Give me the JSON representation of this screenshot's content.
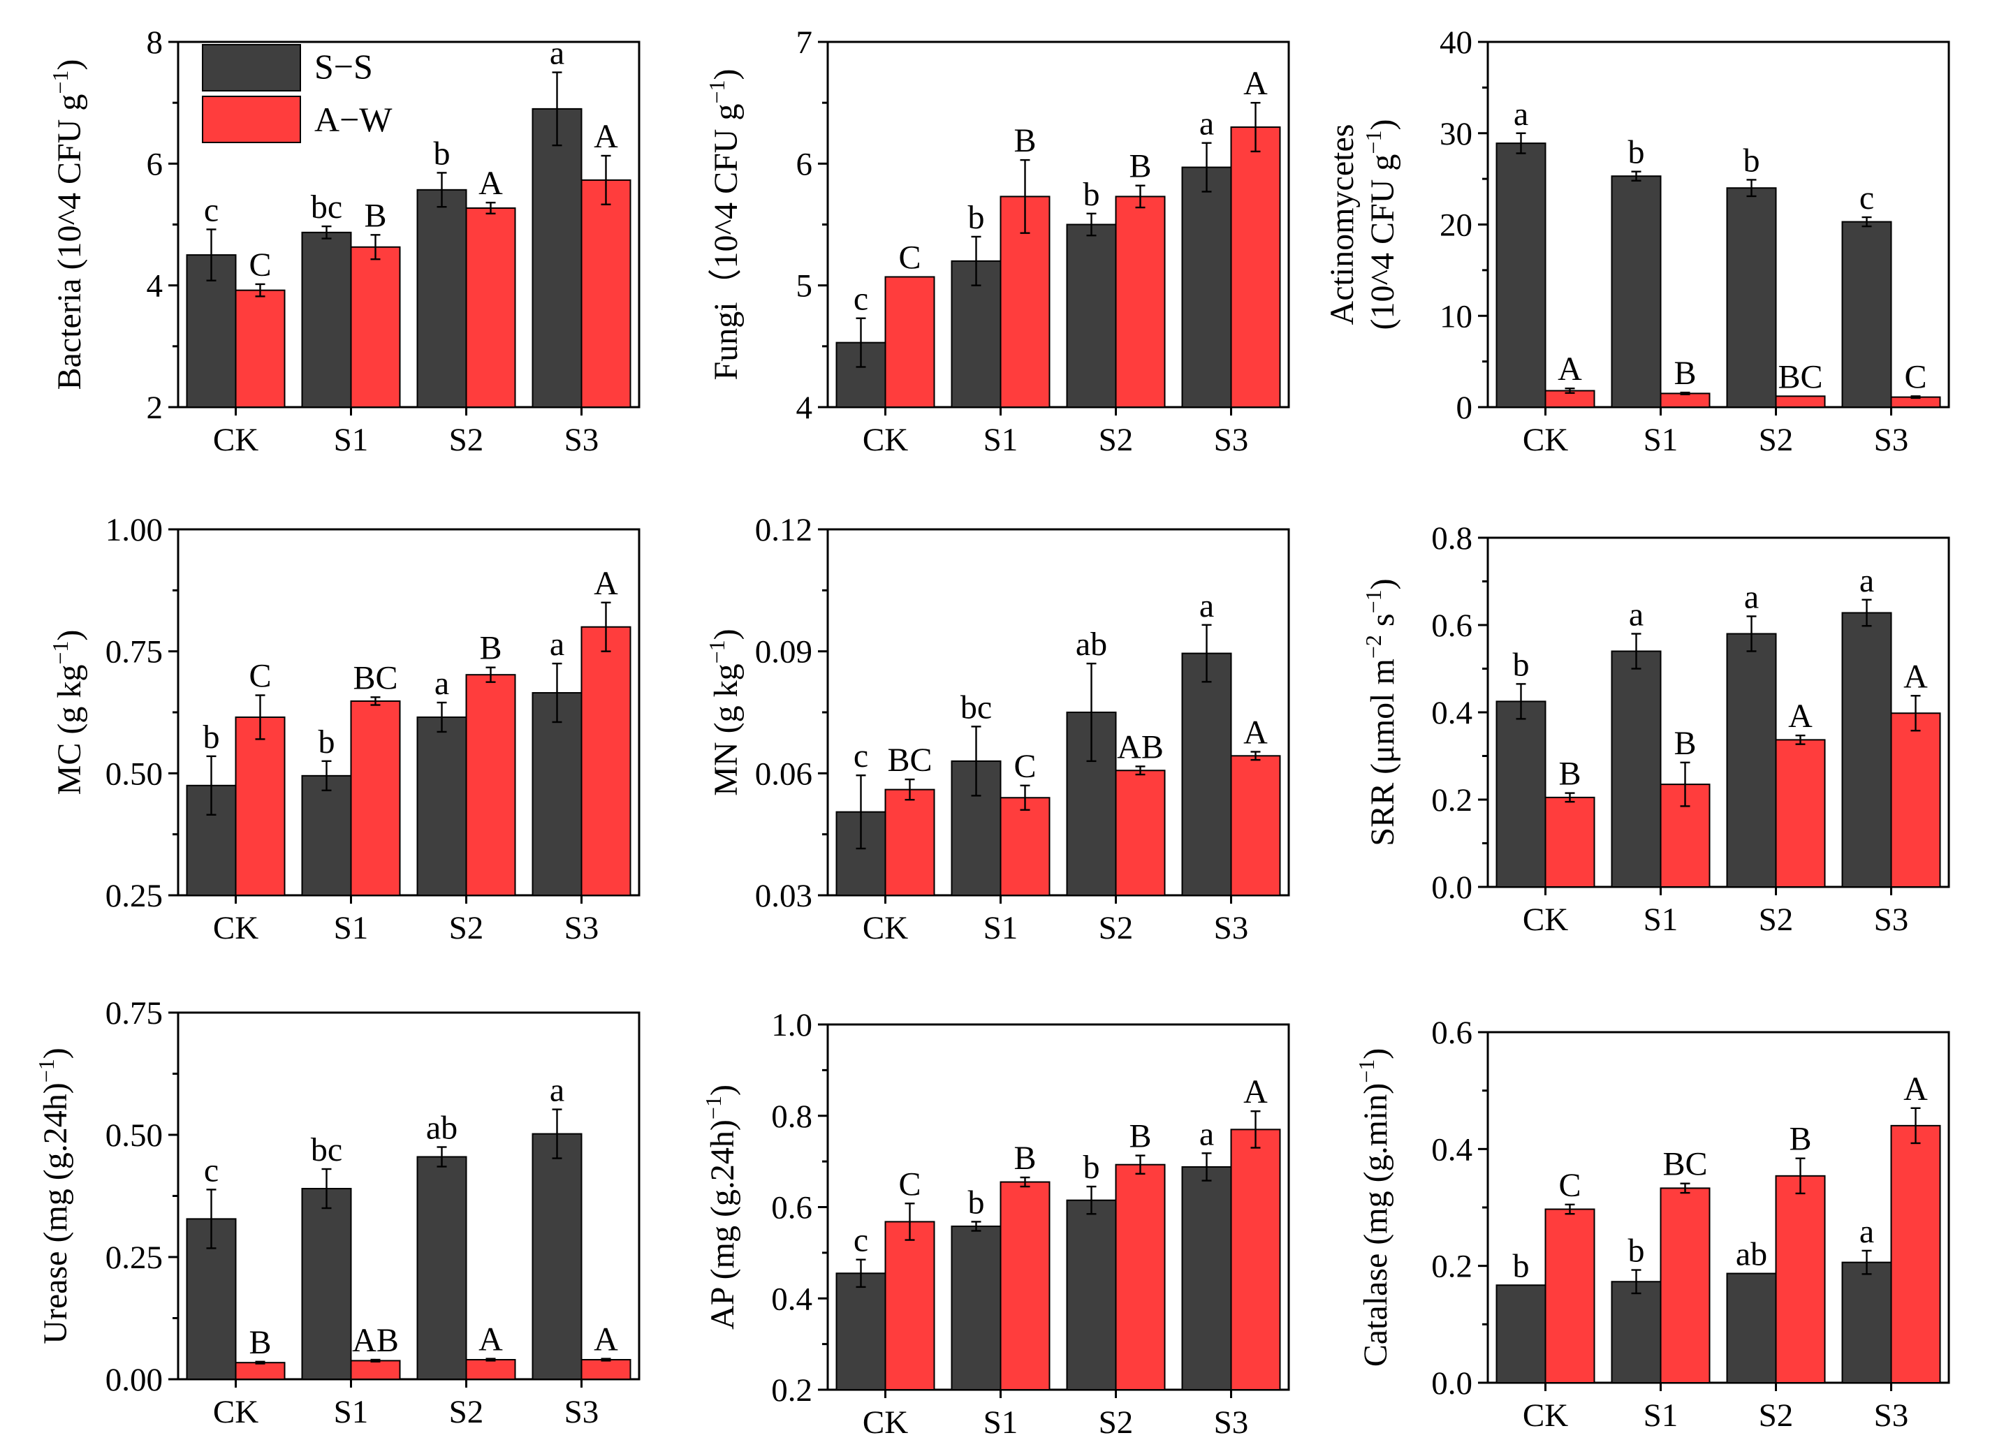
{
  "legend": {
    "entries": [
      {
        "name": "S−S",
        "color": "#3f3f3f"
      },
      {
        "name": "A−W",
        "color": "#ff3d3d"
      }
    ]
  },
  "chart_data": [
    {
      "type": "bar",
      "id": "bacteria",
      "ylabel": "Bacteria (10^4 CFU g",
      "ylabel_sup": "−1",
      "ylabel_tail": ")",
      "categories": [
        "CK",
        "S1",
        "S2",
        "S3"
      ],
      "ylim": [
        2,
        8
      ],
      "yticks": [
        "2",
        "4",
        "6",
        "8"
      ],
      "series": [
        {
          "name": "S−S",
          "values": [
            4.5,
            4.87,
            5.57,
            6.9
          ],
          "errors": [
            0.42,
            0.1,
            0.28,
            0.6
          ],
          "letters": [
            "c",
            "bc",
            "b",
            "a"
          ]
        },
        {
          "name": "A−W",
          "values": [
            3.92,
            4.63,
            5.27,
            5.73
          ],
          "errors": [
            0.1,
            0.2,
            0.09,
            0.4
          ],
          "letters": [
            "C",
            "B",
            "A",
            "A"
          ]
        }
      ]
    },
    {
      "type": "bar",
      "id": "fungi",
      "ylabel": "Fungi（10^4 CFU g",
      "ylabel_sup": "−1",
      "ylabel_tail": ")",
      "categories": [
        "CK",
        "S1",
        "S2",
        "S3"
      ],
      "ylim": [
        4,
        7
      ],
      "yticks": [
        "4",
        "5",
        "6",
        "7"
      ],
      "series": [
        {
          "name": "S−S",
          "values": [
            4.53,
            5.2,
            5.5,
            5.97
          ],
          "errors": [
            0.2,
            0.2,
            0.09,
            0.2
          ],
          "letters": [
            "c",
            "b",
            "b",
            "a"
          ]
        },
        {
          "name": "A−W",
          "values": [
            5.07,
            5.73,
            5.73,
            6.3
          ],
          "errors": [
            0.0,
            0.3,
            0.09,
            0.2
          ],
          "letters": [
            "C",
            "B",
            "B",
            "A"
          ]
        }
      ]
    },
    {
      "type": "bar",
      "id": "actinomycetes",
      "ylabel": "Actinomycetes",
      "ylabel2": "(10^4 CFU g",
      "ylabel_sup": "−1",
      "ylabel_tail": ")",
      "categories": [
        "CK",
        "S1",
        "S2",
        "S3"
      ],
      "ylim": [
        0,
        40
      ],
      "yticks": [
        "0",
        "10",
        "20",
        "30",
        "40"
      ],
      "series": [
        {
          "name": "S−S",
          "values": [
            28.9,
            25.3,
            24.0,
            20.3
          ],
          "errors": [
            1.1,
            0.5,
            0.9,
            0.5
          ],
          "letters": [
            "a",
            "b",
            "b",
            "c"
          ]
        },
        {
          "name": "A−W",
          "values": [
            1.8,
            1.5,
            1.2,
            1.1
          ],
          "errors": [
            0.25,
            0.1,
            0.0,
            0.1
          ],
          "letters": [
            "A",
            "B",
            "BC",
            "C"
          ]
        }
      ]
    },
    {
      "type": "bar",
      "id": "mc",
      "ylabel": "MC (g kg",
      "ylabel_sup": "−1",
      "ylabel_tail": ")",
      "categories": [
        "CK",
        "S1",
        "S2",
        "S3"
      ],
      "ylim": [
        0.25,
        1.0
      ],
      "yticks": [
        "0.25",
        "0.50",
        "0.75",
        "1.00"
      ],
      "series": [
        {
          "name": "S−S",
          "values": [
            0.475,
            0.495,
            0.615,
            0.665
          ],
          "errors": [
            0.06,
            0.03,
            0.03,
            0.06
          ],
          "letters": [
            "b",
            "b",
            "a",
            "a"
          ]
        },
        {
          "name": "A−W",
          "values": [
            0.615,
            0.648,
            0.702,
            0.8
          ],
          "errors": [
            0.045,
            0.008,
            0.015,
            0.05
          ],
          "letters": [
            "C",
            "BC",
            "B",
            "A"
          ]
        }
      ]
    },
    {
      "type": "bar",
      "id": "mn",
      "ylabel": "MN (g kg",
      "ylabel_sup": "−1",
      "ylabel_tail": ")",
      "categories": [
        "CK",
        "S1",
        "S2",
        "S3"
      ],
      "ylim": [
        0.03,
        0.12
      ],
      "yticks": [
        "0.03",
        "0.06",
        "0.09",
        "0.12"
      ],
      "series": [
        {
          "name": "S−S",
          "values": [
            0.0505,
            0.063,
            0.075,
            0.0895
          ],
          "errors": [
            0.009,
            0.0085,
            0.012,
            0.007
          ],
          "letters": [
            "c",
            "bc",
            "ab",
            "a"
          ]
        },
        {
          "name": "A−W",
          "values": [
            0.056,
            0.054,
            0.0607,
            0.0643
          ],
          "errors": [
            0.0025,
            0.003,
            0.001,
            0.001
          ],
          "letters": [
            "BC",
            "C",
            "AB",
            "A"
          ]
        }
      ]
    },
    {
      "type": "bar",
      "id": "srr",
      "ylabel": "SRR (μmol m",
      "ylabel_sup": "−2",
      "ylabel_mid": " s",
      "ylabel_sup2": "−1",
      "ylabel_tail": ")",
      "categories": [
        "CK",
        "S1",
        "S2",
        "S3"
      ],
      "ylim": [
        0,
        0.8
      ],
      "yticks": [
        "0.0",
        "0.2",
        "0.4",
        "0.6",
        "0.8"
      ],
      "series": [
        {
          "name": "S−S",
          "values": [
            0.425,
            0.54,
            0.58,
            0.628
          ],
          "errors": [
            0.04,
            0.04,
            0.04,
            0.03
          ],
          "letters": [
            "b",
            "a",
            "a",
            "a"
          ]
        },
        {
          "name": "A−W",
          "values": [
            0.205,
            0.235,
            0.337,
            0.398
          ],
          "errors": [
            0.01,
            0.05,
            0.01,
            0.04
          ],
          "letters": [
            "B",
            "B",
            "A",
            "A"
          ]
        }
      ]
    },
    {
      "type": "bar",
      "id": "urease",
      "ylabel": "Urease (mg (g.24h)",
      "ylabel_sup": "−1",
      "ylabel_tail": ")",
      "categories": [
        "CK",
        "S1",
        "S2",
        "S3"
      ],
      "ylim": [
        0,
        0.75
      ],
      "yticks": [
        "0.00",
        "0.25",
        "0.50",
        "0.75"
      ],
      "series": [
        {
          "name": "S−S",
          "values": [
            0.328,
            0.39,
            0.455,
            0.502
          ],
          "errors": [
            0.06,
            0.04,
            0.02,
            0.05
          ],
          "letters": [
            "c",
            "bc",
            "ab",
            "a"
          ]
        },
        {
          "name": "A−W",
          "values": [
            0.034,
            0.038,
            0.04,
            0.04
          ],
          "errors": [
            0.002,
            0.002,
            0.002,
            0.002
          ],
          "letters": [
            "B",
            "AB",
            "A",
            "A"
          ]
        }
      ]
    },
    {
      "type": "bar",
      "id": "ap",
      "ylabel": "AP (mg (g.24h)",
      "ylabel_sup": "−1",
      "ylabel_tail": ")",
      "categories": [
        "CK",
        "S1",
        "S2",
        "S3"
      ],
      "ylim": [
        0.2,
        1.0
      ],
      "yticks": [
        "0.2",
        "0.4",
        "0.6",
        "0.8",
        "1.0"
      ],
      "series": [
        {
          "name": "S−S",
          "values": [
            0.455,
            0.558,
            0.615,
            0.688
          ],
          "errors": [
            0.03,
            0.01,
            0.03,
            0.03
          ],
          "letters": [
            "c",
            "b",
            "b",
            "a"
          ]
        },
        {
          "name": "A−W",
          "values": [
            0.568,
            0.655,
            0.693,
            0.77
          ],
          "errors": [
            0.04,
            0.01,
            0.02,
            0.04
          ],
          "letters": [
            "C",
            "B",
            "B",
            "A"
          ]
        }
      ]
    },
    {
      "type": "bar",
      "id": "catalase",
      "ylabel": "Catalase (mg (g.min)",
      "ylabel_sup": "−1",
      "ylabel_tail": ")",
      "categories": [
        "CK",
        "S1",
        "S2",
        "S3"
      ],
      "ylim": [
        0,
        0.6
      ],
      "yticks": [
        "0.0",
        "0.2",
        "0.4",
        "0.6"
      ],
      "series": [
        {
          "name": "S−S",
          "values": [
            0.167,
            0.173,
            0.187,
            0.206
          ],
          "errors": [
            0.0,
            0.02,
            0.0,
            0.02
          ],
          "letters": [
            "b",
            "b",
            "ab",
            "a"
          ]
        },
        {
          "name": "A−W",
          "values": [
            0.297,
            0.333,
            0.354,
            0.44
          ],
          "errors": [
            0.008,
            0.008,
            0.03,
            0.03
          ],
          "letters": [
            "C",
            "BC",
            "B",
            "A"
          ]
        }
      ]
    }
  ]
}
